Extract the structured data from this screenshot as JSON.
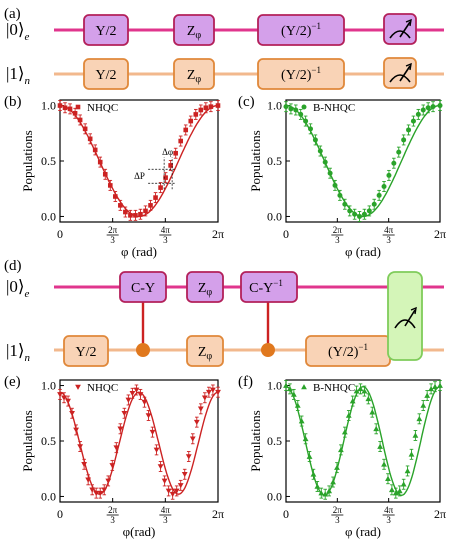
{
  "panel_labels": {
    "a": "(a)",
    "b": "(b)",
    "c": "(c)",
    "d": "(d)",
    "e": "(e)",
    "f": "(f)"
  },
  "colors": {
    "pink": "#e0358d",
    "orange_line": "#f2b88d",
    "gate_purple": "#d4a0ea",
    "gate_purple_border": "#b3205a",
    "gate_orange": "#f9d3b6",
    "gate_orange_border": "#e0883a",
    "red": "#cc2222",
    "green": "#2aa32a",
    "measure_green": "#d4f5b8",
    "control_dot": "#e0781e"
  },
  "circuit_a": {
    "q0_label": "|0⟩",
    "q0_sub": "e",
    "q1_label": "|1⟩",
    "q1_sub": "n",
    "top_gates": [
      "Y/2",
      "Z",
      "(Y/2)"
    ],
    "bottom_gates": [
      "Y/2",
      "Z",
      "(Y/2)"
    ],
    "z_sub": "φ",
    "inv_sup": "−1",
    "measure_icon": "meter-icon"
  },
  "circuit_d": {
    "q0_label": "|0⟩",
    "q0_sub": "e",
    "q1_label": "|1⟩",
    "q1_sub": "n",
    "top_gates": [
      "C-Y",
      "Z",
      "C-Y"
    ],
    "bottom_gates": [
      "Y/2",
      "Z",
      "(Y/2)"
    ],
    "z_sub": "φ",
    "inv_sup": "−1",
    "measure_icon": "meter-icon"
  },
  "annotations_b": {
    "delta_phi": "Δφ",
    "delta_p": "ΔP"
  },
  "chart_data": [
    {
      "id": "b",
      "type": "scatter",
      "ylabel": "Populations",
      "xlabel": "φ (rad)",
      "legend": "NHQC",
      "marker": "square",
      "color": "#cc2222",
      "xlim": [
        0,
        6.2832
      ],
      "ylim": [
        -0.05,
        1.05
      ],
      "xticks": [
        "0",
        "2π/3",
        "4π/3",
        "2π"
      ],
      "yticks": [
        "0.0",
        "0.5",
        "1.0"
      ],
      "x": [
        0,
        0.2,
        0.4,
        0.6,
        0.8,
        1.0,
        1.2,
        1.4,
        1.6,
        1.8,
        2.0,
        2.2,
        2.4,
        2.6,
        2.8,
        3.0,
        3.2,
        3.4,
        3.6,
        3.8,
        4.0,
        4.2,
        4.4,
        4.6,
        4.8,
        5.0,
        5.2,
        5.4,
        5.6,
        5.8,
        6.0,
        6.2832
      ],
      "values": [
        1.0,
        0.98,
        0.97,
        0.93,
        0.87,
        0.79,
        0.7,
        0.6,
        0.49,
        0.38,
        0.28,
        0.18,
        0.1,
        0.04,
        0.01,
        0.01,
        0.02,
        0.05,
        0.1,
        0.17,
        0.26,
        0.35,
        0.46,
        0.57,
        0.68,
        0.78,
        0.86,
        0.92,
        0.96,
        0.98,
        0.99,
        1.0
      ]
    },
    {
      "id": "c",
      "type": "scatter",
      "ylabel": "Populations",
      "xlabel": "φ (rad)",
      "legend": "B-NHQC",
      "marker": "circle",
      "color": "#2aa32a",
      "xlim": [
        0,
        6.2832
      ],
      "ylim": [
        -0.05,
        1.05
      ],
      "xticks": [
        "0",
        "2π/3",
        "4π/3",
        "2π"
      ],
      "yticks": [
        "0.0",
        "0.5",
        "1.0"
      ],
      "x": [
        0,
        0.2,
        0.4,
        0.6,
        0.8,
        1.0,
        1.2,
        1.4,
        1.6,
        1.8,
        2.0,
        2.2,
        2.4,
        2.6,
        2.8,
        3.0,
        3.2,
        3.4,
        3.6,
        3.8,
        4.0,
        4.2,
        4.4,
        4.6,
        4.8,
        5.0,
        5.2,
        5.4,
        5.6,
        5.8,
        6.0,
        6.2832
      ],
      "values": [
        0.99,
        0.97,
        0.96,
        0.92,
        0.86,
        0.79,
        0.69,
        0.59,
        0.49,
        0.39,
        0.28,
        0.19,
        0.11,
        0.05,
        0.02,
        0.0,
        0.02,
        0.05,
        0.11,
        0.19,
        0.27,
        0.37,
        0.48,
        0.58,
        0.69,
        0.78,
        0.86,
        0.92,
        0.96,
        0.98,
        0.99,
        1.0
      ]
    },
    {
      "id": "e",
      "type": "scatter",
      "ylabel": "Populations",
      "xlabel": "φ(rad)",
      "legend": "NHQC",
      "marker": "triangle-down",
      "color": "#cc2222",
      "xlim": [
        0,
        6.2832
      ],
      "ylim": [
        -0.05,
        1.05
      ],
      "xticks": [
        "0",
        "2π/3",
        "4π/3",
        "2π"
      ],
      "yticks": [
        "0.0",
        "0.5",
        "1.0"
      ],
      "x": [
        0.0,
        0.16,
        0.32,
        0.48,
        0.64,
        0.8,
        0.96,
        1.12,
        1.28,
        1.44,
        1.6,
        1.76,
        1.92,
        2.08,
        2.24,
        2.4,
        2.56,
        2.72,
        2.88,
        3.04,
        3.2,
        3.36,
        3.52,
        3.68,
        3.84,
        4.0,
        4.16,
        4.32,
        4.48,
        4.64,
        4.8,
        4.96,
        5.12,
        5.28,
        5.44,
        5.6,
        5.76,
        5.92,
        6.08,
        6.2832
      ],
      "values": [
        0.92,
        0.89,
        0.86,
        0.75,
        0.6,
        0.45,
        0.29,
        0.15,
        0.06,
        0.03,
        0.03,
        0.06,
        0.14,
        0.28,
        0.44,
        0.61,
        0.75,
        0.87,
        0.93,
        0.96,
        0.92,
        0.85,
        0.73,
        0.58,
        0.42,
        0.27,
        0.14,
        0.05,
        0.02,
        0.05,
        0.1,
        0.2,
        0.36,
        0.52,
        0.67,
        0.79,
        0.89,
        0.94,
        0.96,
        0.94
      ]
    },
    {
      "id": "f",
      "type": "scatter",
      "ylabel": "Populations",
      "xlabel": "φ (rad)",
      "legend": "B-NHQC",
      "marker": "triangle-up",
      "color": "#2aa32a",
      "xlim": [
        0,
        6.2832
      ],
      "ylim": [
        -0.05,
        1.05
      ],
      "xticks": [
        "0",
        "2π/3",
        "4π/3",
        "2π"
      ],
      "yticks": [
        "0.0",
        "0.5",
        "1.0"
      ],
      "x": [
        0.0,
        0.16,
        0.32,
        0.48,
        0.64,
        0.8,
        0.96,
        1.12,
        1.28,
        1.44,
        1.6,
        1.76,
        1.92,
        2.08,
        2.24,
        2.4,
        2.56,
        2.72,
        2.88,
        3.04,
        3.2,
        3.36,
        3.52,
        3.68,
        3.84,
        4.0,
        4.16,
        4.32,
        4.48,
        4.64,
        4.8,
        4.96,
        5.12,
        5.28,
        5.44,
        5.6,
        5.76,
        5.92,
        6.08,
        6.2832
      ],
      "values": [
        1.0,
        0.97,
        0.92,
        0.82,
        0.68,
        0.52,
        0.36,
        0.2,
        0.09,
        0.03,
        0.02,
        0.05,
        0.13,
        0.26,
        0.42,
        0.58,
        0.73,
        0.86,
        0.95,
        0.97,
        0.95,
        0.88,
        0.76,
        0.61,
        0.45,
        0.29,
        0.16,
        0.06,
        0.03,
        0.05,
        0.11,
        0.23,
        0.38,
        0.55,
        0.7,
        0.82,
        0.91,
        0.97,
        0.99,
        1.0
      ]
    }
  ]
}
